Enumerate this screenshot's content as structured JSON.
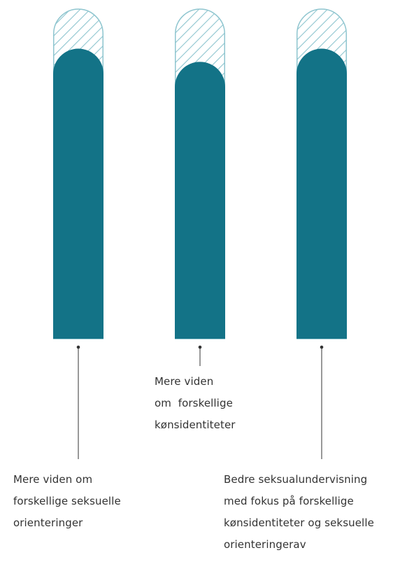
{
  "chart_data": {
    "type": "bar",
    "categories": [
      "Mere viden om forskellige seksuelle orienteringer",
      "Mere viden om forskellige kønsidentiteter",
      "Bedre seksualundervisning med fokus på forskellige kønsidentiteter og seksuelle orienteringerav"
    ],
    "category_lines": [
      [
        "Mere viden om",
        "forskellige seksuelle",
        "orienteringer"
      ],
      [
        "Mere viden",
        "om  forskellige",
        "kønsidentiteter"
      ],
      [
        "Bedre seksualundervisning",
        "med fokus på forskellige",
        "kønsidentiteter og seksuelle",
        "orienteringerav"
      ]
    ],
    "values": [
      88,
      84,
      88
    ],
    "ylim": [
      0,
      100
    ],
    "background": "hatched remainder to 100",
    "colors": {
      "bar": "#137387",
      "hatch": "#8ec5cf",
      "leader": "#333333"
    }
  }
}
